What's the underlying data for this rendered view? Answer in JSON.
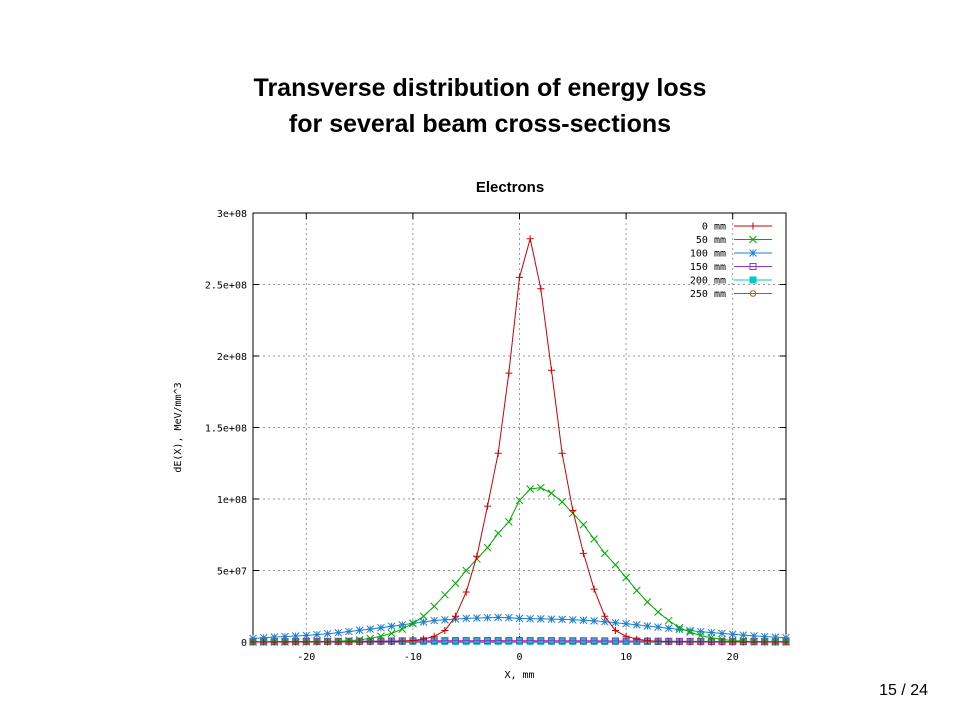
{
  "slide": {
    "title_line1": "Transverse distribution of energy loss",
    "title_line2": "for several beam cross-sections",
    "page_number": "15 / 24"
  },
  "chart_data": {
    "type": "line",
    "title": "Electrons",
    "xlabel": "X, mm",
    "ylabel": "dE(X), MeV/mm^3",
    "xlim": [
      -25,
      25
    ],
    "ylim": [
      0,
      300000000
    ],
    "x_ticks": [
      -20,
      -10,
      0,
      10,
      20
    ],
    "x_tick_labels": [
      "-20",
      "-10",
      "0",
      "10",
      "20"
    ],
    "y_ticks": [
      0,
      50000000,
      100000000,
      150000000,
      200000000,
      250000000,
      300000000
    ],
    "y_tick_labels": [
      "0",
      "5e+07",
      "1e+08",
      "1.5e+08",
      "2e+08",
      "2.5e+08",
      "3e+08"
    ],
    "grid": true,
    "legend_position": "top-right",
    "x": [
      -25,
      -24,
      -23,
      -22,
      -21,
      -20,
      -19,
      -18,
      -17,
      -16,
      -15,
      -14,
      -13,
      -12,
      -11,
      -10,
      -9,
      -8,
      -7,
      -6,
      -5,
      -4,
      -3,
      -2,
      -1,
      0,
      1,
      2,
      3,
      4,
      5,
      6,
      7,
      8,
      9,
      10,
      11,
      12,
      13,
      14,
      15,
      16,
      17,
      18,
      19,
      20,
      21,
      22,
      23,
      24,
      25
    ],
    "series": [
      {
        "name": "0 mm",
        "color": "#cc0000",
        "marker": "plus",
        "values": [
          0,
          0,
          0,
          0,
          0,
          0,
          0,
          0,
          0,
          0,
          0,
          100000,
          200000,
          300000,
          600000,
          1000000,
          2000000,
          4000000,
          8000000,
          18000000,
          35000000,
          60000000,
          95000000,
          132000000,
          188000000,
          255000000,
          282000000,
          247000000,
          190000000,
          132000000,
          92000000,
          62000000,
          37000000,
          18000000,
          8000000,
          4000000,
          2000000,
          1000000,
          500000,
          200000,
          100000,
          0,
          0,
          0,
          0,
          0,
          0,
          0,
          0,
          0,
          0
        ]
      },
      {
        "name": "50 mm",
        "color": "#00aa00",
        "marker": "cross",
        "values": [
          0,
          0,
          0,
          0,
          0,
          100000,
          200000,
          300000,
          500000,
          1000000,
          1500000,
          2500000,
          4000000,
          6000000,
          9000000,
          13000000,
          18000000,
          25000000,
          33000000,
          41000000,
          50000000,
          58000000,
          66000000,
          76000000,
          84000000,
          99000000,
          107000000,
          108000000,
          104000000,
          98000000,
          90000000,
          82000000,
          72000000,
          62000000,
          54000000,
          45000000,
          36000000,
          28000000,
          21000000,
          15000000,
          10000000,
          7000000,
          4500000,
          3000000,
          1800000,
          1000000,
          600000,
          300000,
          200000,
          100000,
          0
        ]
      },
      {
        "name": "100 mm",
        "color": "#1f7fd1",
        "marker": "star",
        "values": [
          2500000,
          3000000,
          3500000,
          3800000,
          4200000,
          4600000,
          5200000,
          5800000,
          6500000,
          7300000,
          8200000,
          9000000,
          10000000,
          11000000,
          12000000,
          13000000,
          14000000,
          15000000,
          15500000,
          16000000,
          16500000,
          16800000,
          17000000,
          17200000,
          17000000,
          16500000,
          16300000,
          16200000,
          16000000,
          15800000,
          15500000,
          15200000,
          14800000,
          14200000,
          13500000,
          12800000,
          12000000,
          11200000,
          10400000,
          9600000,
          8800000,
          8000000,
          7300000,
          6600000,
          6000000,
          5400000,
          4800000,
          4300000,
          3800000,
          3400000,
          3000000
        ]
      },
      {
        "name": "150 mm",
        "color": "#9933cc",
        "marker": "square-open",
        "values": [
          200000,
          220000,
          250000,
          280000,
          310000,
          350000,
          390000,
          440000,
          490000,
          540000,
          600000,
          650000,
          700000,
          750000,
          800000,
          850000,
          900000,
          930000,
          960000,
          980000,
          1000000,
          1010000,
          1020000,
          1020000,
          1010000,
          1000000,
          990000,
          980000,
          960000,
          940000,
          910000,
          880000,
          840000,
          800000,
          760000,
          720000,
          680000,
          630000,
          580000,
          530000,
          480000,
          440000,
          400000,
          360000,
          320000,
          290000,
          260000,
          240000,
          220000,
          200000,
          180000
        ]
      },
      {
        "name": "200 mm",
        "color": "#00c8c8",
        "marker": "square-filled",
        "values": [
          150000,
          160000,
          180000,
          200000,
          220000,
          240000,
          260000,
          290000,
          310000,
          340000,
          360000,
          390000,
          410000,
          430000,
          450000,
          470000,
          490000,
          500000,
          510000,
          520000,
          530000,
          530000,
          540000,
          540000,
          540000,
          530000,
          530000,
          520000,
          520000,
          510000,
          500000,
          490000,
          470000,
          450000,
          430000,
          410000,
          390000,
          370000,
          340000,
          320000,
          300000,
          280000,
          250000,
          230000,
          210000,
          190000,
          180000,
          160000,
          150000,
          140000,
          130000
        ]
      },
      {
        "name": "250 mm",
        "color": "#b05a1a",
        "marker": "circle",
        "values": [
          100000,
          110000,
          120000,
          130000,
          140000,
          150000,
          160000,
          170000,
          180000,
          190000,
          200000,
          210000,
          220000,
          230000,
          240000,
          250000,
          260000,
          265000,
          270000,
          275000,
          280000,
          282000,
          284000,
          285000,
          285000,
          284000,
          282000,
          280000,
          276000,
          272000,
          268000,
          262000,
          255000,
          248000,
          240000,
          232000,
          224000,
          215000,
          206000,
          196000,
          186000,
          176000,
          166000,
          156000,
          146000,
          136000,
          126000,
          116000,
          106000,
          100000,
          95000
        ]
      }
    ]
  }
}
